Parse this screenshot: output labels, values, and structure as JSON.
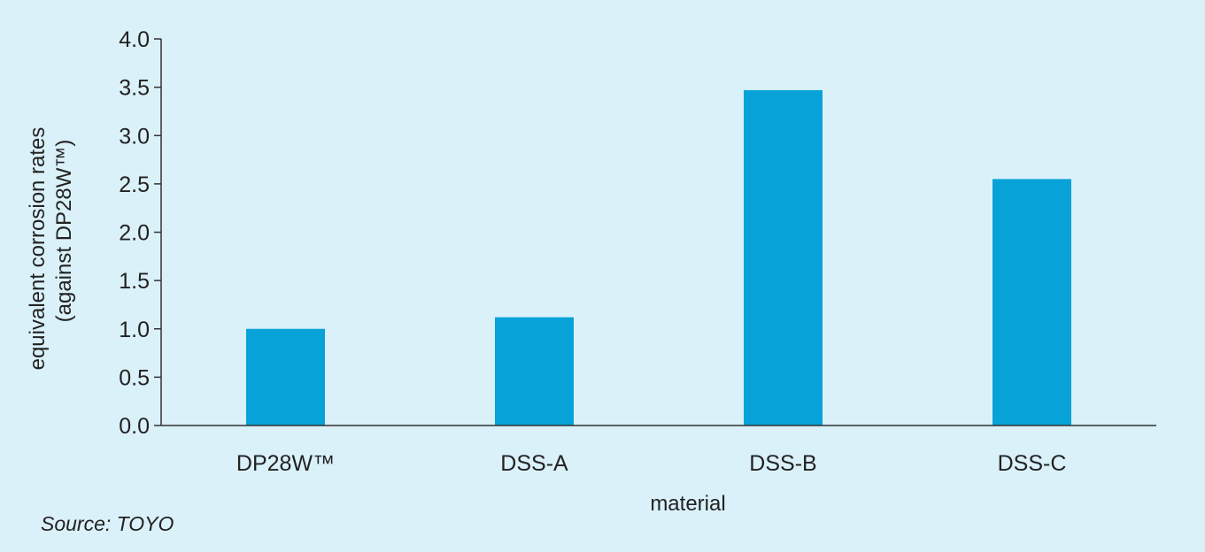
{
  "chart_data": {
    "type": "bar",
    "categories": [
      "DP28W™",
      "DSS-A",
      "DSS-B",
      "DSS-C"
    ],
    "values": [
      1.0,
      1.12,
      3.47,
      2.55
    ],
    "title": "",
    "xlabel": "material",
    "ylabel_line1": "equivalent corrosion rates",
    "ylabel_line2": "(against DP28W™)",
    "ylim": [
      0,
      4.0
    ],
    "yticks": [
      "0.0",
      "0.5",
      "1.0",
      "1.5",
      "2.0",
      "2.5",
      "3.0",
      "3.5",
      "4.0"
    ],
    "grid": false,
    "legend": "none",
    "bar_color": "#06a2d8",
    "axis_color": "#333333",
    "background_color": "#dbf1fa"
  },
  "source_note": "Source: TOYO"
}
